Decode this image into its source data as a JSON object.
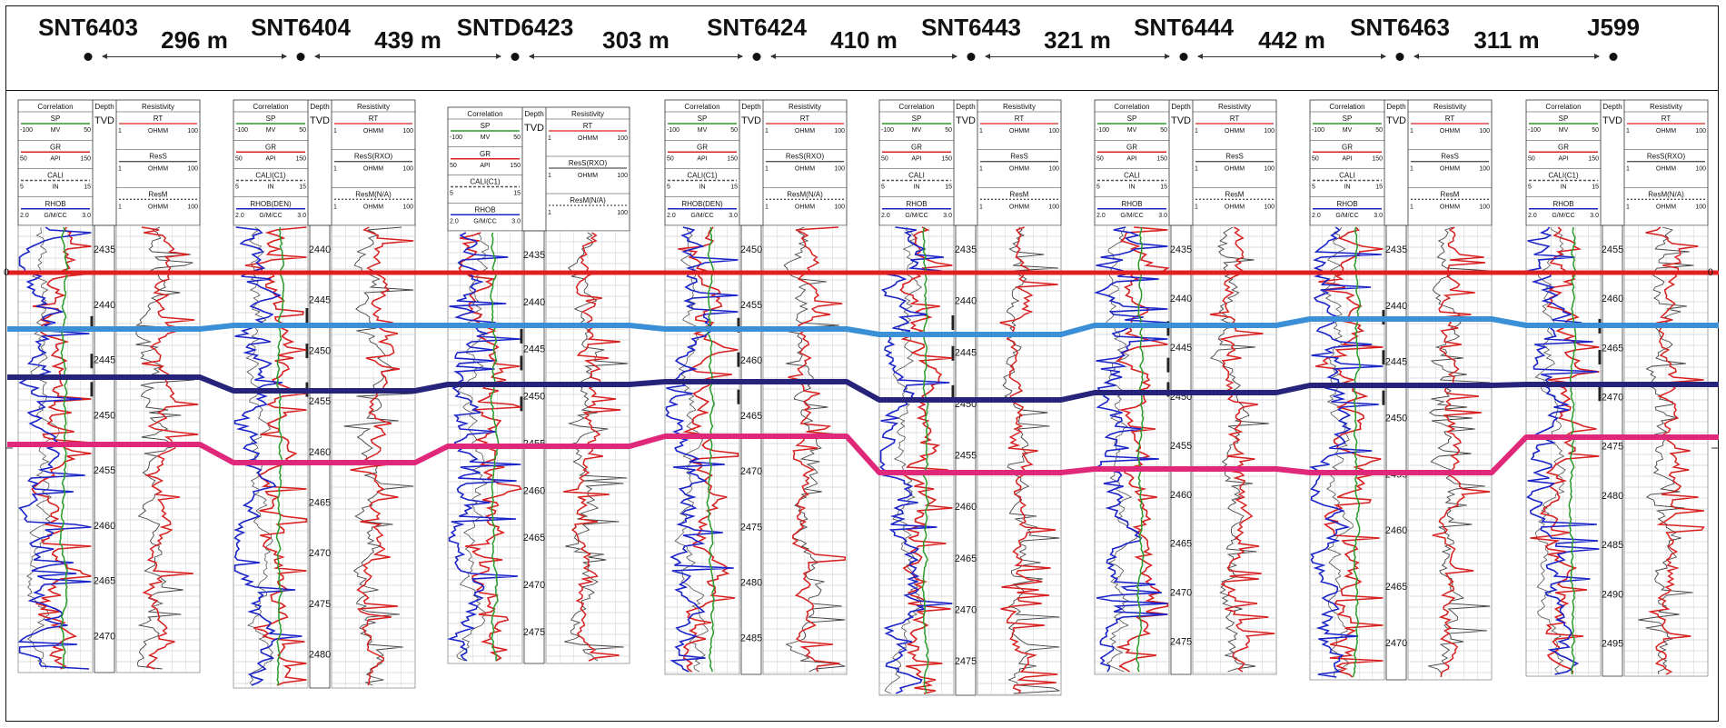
{
  "wells": [
    {
      "name": "SNT6403",
      "col_header": [
        "Correlation",
        "Depth",
        "Resistivity"
      ],
      "tvd": "TVD",
      "tracks": {
        "sp": [
          "SP",
          "-100",
          "MV",
          "50"
        ],
        "gr": [
          "GR",
          "50",
          "API",
          "150"
        ],
        "cali": [
          "CALI",
          "5",
          "IN",
          "15"
        ],
        "rhob": [
          "RHOB",
          "2.0",
          "G/M/CC",
          "3.0"
        ],
        "rt": [
          "RT",
          "1",
          "OHMM",
          "100"
        ],
        "rs": [
          "ResS",
          "1",
          "OHMM",
          "100"
        ],
        "rm": [
          "ResM",
          "1",
          "OHMM",
          "100"
        ]
      },
      "depth_ticks": [
        "2435",
        "2440",
        "2445",
        "2450",
        "2455",
        "2460",
        "2465",
        "2470"
      ]
    },
    {
      "name": "SNT6404",
      "col_header": [
        "Correlation",
        "Depth",
        "Resistivity"
      ],
      "tvd": "TVD",
      "tracks": {
        "sp": [
          "SP",
          "-100",
          "MV",
          "50"
        ],
        "gr": [
          "GR",
          "50",
          "API",
          "150"
        ],
        "cali": [
          "CALI(C1)",
          "5",
          "IN",
          "15"
        ],
        "rhob": [
          "RHOB(DEN)",
          "2.0",
          "G/M/CC",
          "3.0"
        ],
        "rt": [
          "RT",
          "1",
          "OHMM",
          "100"
        ],
        "rs": [
          "ResS(RXO)",
          "1",
          "OHMM",
          "100"
        ],
        "rm": [
          "ResM(N/A)",
          "1",
          "OHMM",
          "100"
        ]
      },
      "depth_ticks": [
        "2440",
        "2445",
        "2450",
        "2455",
        "2460",
        "2465",
        "2470",
        "2475",
        "2480"
      ]
    },
    {
      "name": "SNTD6423",
      "col_header": [
        "Correlation",
        "Depth",
        "Resistivity"
      ],
      "tvd": "TVD",
      "tracks": {
        "sp": [
          "SP",
          "-100",
          "MV",
          "50"
        ],
        "gr": [
          "GR",
          "50",
          "API",
          "150"
        ],
        "cali": [
          "CALI(C1)",
          "5",
          "",
          "15"
        ],
        "rhob": [
          "RHOB",
          "2.0",
          "G/M/CC",
          "3.0"
        ],
        "rt": [
          "RT",
          "1",
          "OHMM",
          "100"
        ],
        "rs": [
          "ResS(RXO)",
          "1",
          "OHMM",
          "100"
        ],
        "rm": [
          "ResM(N/A)",
          "1",
          "",
          "100"
        ]
      },
      "depth_ticks": [
        "2435",
        "2440",
        "2445",
        "2450",
        "2455",
        "2460",
        "2465",
        "2470",
        "2475"
      ]
    },
    {
      "name": "SNT6424",
      "col_header": [
        "Correlation",
        "Depth",
        "Resistivity"
      ],
      "tvd": "TVD",
      "tracks": {
        "sp": [
          "SP",
          "-100",
          "MV",
          "50"
        ],
        "gr": [
          "GR",
          "50",
          "API",
          "150"
        ],
        "cali": [
          "CALI(C1)",
          "5",
          "IN",
          "15"
        ],
        "rhob": [
          "RHOB(DEN)",
          "2.0",
          "G/M/CC",
          "3.0"
        ],
        "rt": [
          "RT",
          "1",
          "OHMM",
          "100"
        ],
        "rs": [
          "ResS(RXO)",
          "1",
          "OHMM",
          "100"
        ],
        "rm": [
          "ResM(N/A)",
          "1",
          "OHMM",
          "100"
        ]
      },
      "depth_ticks": [
        "2450",
        "2455",
        "2460",
        "2465",
        "2470",
        "2475",
        "2480",
        "2485"
      ]
    },
    {
      "name": "SNT6443",
      "col_header": [
        "Correlation",
        "Depth",
        "Resistivity"
      ],
      "tvd": "TVD",
      "tracks": {
        "sp": [
          "SP",
          "-100",
          "MV",
          "50"
        ],
        "gr": [
          "GR",
          "50",
          "API",
          "150"
        ],
        "cali": [
          "CALI",
          "5",
          "IN",
          "15"
        ],
        "rhob": [
          "RHOB",
          "2.0",
          "G/M/CC",
          "3.0"
        ],
        "rt": [
          "RT",
          "1",
          "OHMM",
          "100"
        ],
        "rs": [
          "ResS",
          "1",
          "OHMM",
          "100"
        ],
        "rm": [
          "ResM",
          "1",
          "OHMM",
          "100"
        ]
      },
      "depth_ticks": [
        "2435",
        "2440",
        "2445",
        "2450",
        "2455",
        "2460",
        "2465",
        "2470",
        "2475"
      ]
    },
    {
      "name": "SNT6444",
      "col_header": [
        "Correlation",
        "Depth",
        "Resistivity"
      ],
      "tvd": "TVD",
      "tracks": {
        "sp": [
          "SP",
          "-100",
          "MV",
          "50"
        ],
        "gr": [
          "GR",
          "50",
          "API",
          "150"
        ],
        "cali": [
          "CALI",
          "5",
          "IN",
          "15"
        ],
        "rhob": [
          "RHOB",
          "2.0",
          "G/M/CC",
          "3.0"
        ],
        "rt": [
          "RT",
          "1",
          "OHMM",
          "100"
        ],
        "rs": [
          "ResS",
          "1",
          "OHMM",
          "100"
        ],
        "rm": [
          "ResM",
          "1",
          "OHMM",
          "100"
        ]
      },
      "depth_ticks": [
        "2435",
        "2440",
        "2445",
        "2450",
        "2455",
        "2460",
        "2465",
        "2470",
        "2475"
      ]
    },
    {
      "name": "SNT6463",
      "col_header": [
        "Correlation",
        "Depth",
        "Resistivity"
      ],
      "tvd": "TVD",
      "tracks": {
        "sp": [
          "SP",
          "-100",
          "MV",
          "50"
        ],
        "gr": [
          "GR",
          "50",
          "API",
          "150"
        ],
        "cali": [
          "CALI",
          "5",
          "IN",
          "15"
        ],
        "rhob": [
          "RHOB",
          "2.0",
          "G/M/CC",
          "3.0"
        ],
        "rt": [
          "RT",
          "1",
          "OHMM",
          "100"
        ],
        "rs": [
          "ResS",
          "1",
          "OHMM",
          "100"
        ],
        "rm": [
          "ResM",
          "1",
          "OHMM",
          "100"
        ]
      },
      "depth_ticks": [
        "2435",
        "2440",
        "2445",
        "2450",
        "2455",
        "2460",
        "2465",
        "2470"
      ]
    },
    {
      "name": "J599",
      "col_header": [
        "Correlation",
        "Depth",
        "Resistivity"
      ],
      "tvd": "TVD",
      "tracks": {
        "sp": [
          "SP",
          "-100",
          "MV",
          "50"
        ],
        "gr": [
          "GR",
          "50",
          "API",
          "150"
        ],
        "cali": [
          "CALI(C1)",
          "5",
          "IN",
          "15"
        ],
        "rhob": [
          "RHOB",
          "2.0",
          "G/M/CC",
          "3.0"
        ],
        "rt": [
          "RT",
          "1",
          "OHMM",
          "100"
        ],
        "rs": [
          "ResS(RXO)",
          "1",
          "OHMM",
          "100"
        ],
        "rm": [
          "ResM(N/A)",
          "1",
          "OHMM",
          "100"
        ]
      },
      "depth_ticks": [
        "2455",
        "2460",
        "2465",
        "2470",
        "2475",
        "2480",
        "2485",
        "2490",
        "2495"
      ]
    }
  ],
  "distances": [
    "296 m",
    "439 m",
    "303 m",
    "410 m",
    "321 m",
    "442 m",
    "311 m"
  ],
  "datum_label": "0",
  "horizon_colors": [
    "#e02020",
    "#3a8fd6",
    "#25247a",
    "#e0287a"
  ],
  "curve_colors": {
    "sp": "#2a9a2a",
    "gr": "#d82020",
    "rhob": "#1a24c8",
    "cali": "#555555",
    "res": "#444444"
  }
}
